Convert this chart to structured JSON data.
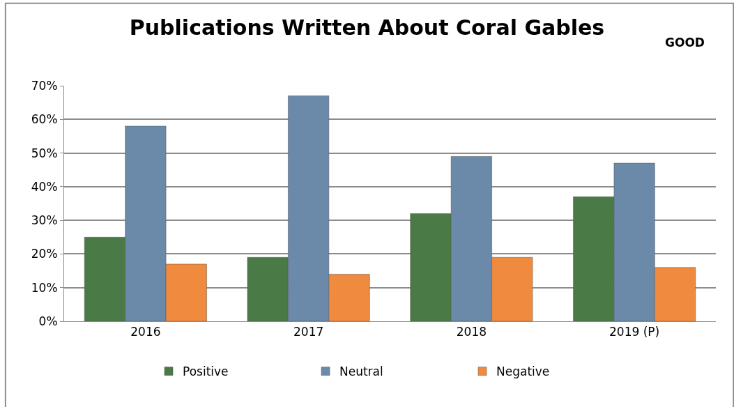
{
  "chart_data": {
    "type": "bar",
    "title": "Publications Written About Coral Gables",
    "annotations": [
      "GOOD"
    ],
    "categories": [
      "2016",
      "2017",
      "2018",
      "2019 (P)"
    ],
    "series": [
      {
        "name": "Positive",
        "color": "#4a7a45",
        "values": [
          25,
          19,
          32,
          37
        ]
      },
      {
        "name": "Neutral",
        "color": "#6b89a8",
        "values": [
          58,
          67,
          49,
          47
        ]
      },
      {
        "name": "Negative",
        "color": "#f08a3e",
        "values": [
          17,
          14,
          19,
          16
        ]
      }
    ],
    "ylim": [
      0,
      70
    ],
    "yticks": [
      {
        "value": 0,
        "label": "0%"
      },
      {
        "value": 10,
        "label": "10%"
      },
      {
        "value": 20,
        "label": "20%"
      },
      {
        "value": 30,
        "label": "30%"
      },
      {
        "value": 40,
        "label": "40%"
      },
      {
        "value": 50,
        "label": "50%"
      },
      {
        "value": 60,
        "label": "60%"
      },
      {
        "value": 70,
        "label": "70%"
      }
    ],
    "grid": "y",
    "legend": "bottom"
  }
}
